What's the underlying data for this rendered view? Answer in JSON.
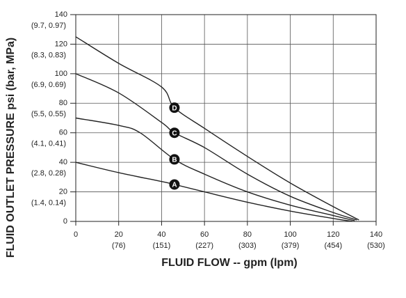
{
  "chart_data": {
    "type": "line",
    "x_label": "FLUID FLOW -- gpm (lpm)",
    "y_label": "FLUID OUTLET PRESSURE psi (bar, MPa)",
    "xlim": [
      0,
      140
    ],
    "xticks": [
      0,
      20,
      40,
      60,
      80,
      100,
      120,
      140
    ],
    "xtick_sublabels": [
      null,
      "(76)",
      "(151)",
      "(227)",
      "(303)",
      "(379)",
      "(454)",
      "(530)"
    ],
    "ylim": [
      0,
      140
    ],
    "yticks": [
      0,
      20,
      40,
      60,
      80,
      100,
      120,
      140
    ],
    "ytick_sublabels": [
      null,
      "(1.4, 0.14)",
      "(2.8, 0.28)",
      "(4.1, 0.41)",
      "(5.5, 0.55)",
      "(6.9, 0.69)",
      "(8.3, 0.83)",
      "(9.7, 0.97)"
    ],
    "grid": true,
    "series": [
      {
        "name": "A",
        "color": "#222222",
        "x": [
          0,
          20,
          40,
          46,
          60,
          80,
          100,
          120,
          129
        ],
        "values": [
          40,
          33,
          27,
          25,
          20,
          13,
          7,
          2,
          0
        ]
      },
      {
        "name": "B",
        "color": "#222222",
        "x": [
          0,
          20,
          30,
          46,
          60,
          80,
          100,
          120,
          130
        ],
        "values": [
          70,
          65,
          60,
          42,
          32,
          20,
          11,
          4,
          0.5
        ]
      },
      {
        "name": "C",
        "color": "#222222",
        "x": [
          0,
          20,
          40,
          46,
          60,
          80,
          100,
          120,
          131
        ],
        "values": [
          100,
          87,
          67,
          60,
          50,
          32,
          17,
          6,
          1
        ]
      },
      {
        "name": "D",
        "color": "#222222",
        "x": [
          0,
          20,
          40,
          46,
          60,
          80,
          100,
          120,
          132
        ],
        "values": [
          125,
          107,
          91,
          77,
          63,
          44,
          26,
          10,
          1
        ]
      }
    ]
  }
}
